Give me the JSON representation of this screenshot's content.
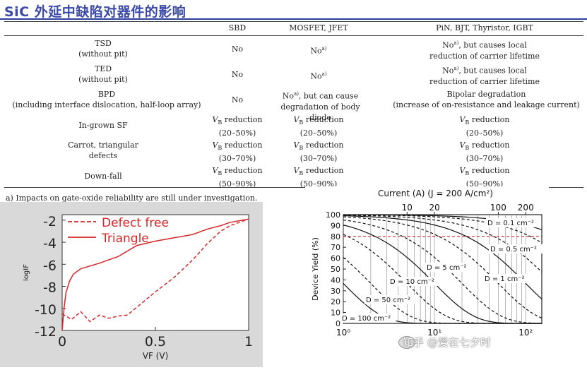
{
  "title": "SiC 外延中缺陷对器件的影响",
  "table": {
    "headers": [
      "",
      "SBD",
      "MOSFET, JFET",
      "PiN, BJT, Thyristor, IGBT"
    ],
    "rows": [
      {
        "defect": "TSD",
        "defect_sub": "(without pit)",
        "sbd": "No",
        "mosfet": "No",
        "mosfet_sup": "a)",
        "bip1": "No",
        "bip1_sup": "a)",
        "bip1_rest": ", but causes local",
        "bip2": "reduction of carrier lifetime"
      },
      {
        "defect": "TED",
        "defect_sub": "(without pit)",
        "sbd": "No",
        "mosfet": "No",
        "mosfet_sup": "a)",
        "bip1": "No",
        "bip1_sup": "a)",
        "bip1_rest": ", but causes local",
        "bip2": "reduction of carrier lifetime"
      },
      {
        "defect": "BPD",
        "defect_sub": "(including interface dislocation, half-loop array)",
        "sbd": "No",
        "mosfet": "No",
        "mosfet_sup": "a)",
        "mosfet_rest": ", but can cause",
        "mosfet2": "degradation of body diode",
        "bip1": "Bipolar degradation",
        "bip2": "(increase of on-resistance and leakage current)"
      },
      {
        "defect": "In-grown SF",
        "defect_sub": "",
        "sbd": "reduction",
        "sbd2": "(20–50%)",
        "mosfet": "reduction",
        "mosfet2": "(20–50%)",
        "bip1": "reduction",
        "bip2": "(20–50%)"
      },
      {
        "defect": "Carrot, triangular",
        "defect_sub": "defects",
        "sbd": "reduction",
        "sbd2": "(30–70%)",
        "mosfet": "reduction",
        "mosfet2": "(30–70%)",
        "bip1": "reduction",
        "bip2": "(30–70%)"
      },
      {
        "defect": "Down-fall",
        "defect_sub": "",
        "sbd": "reduction",
        "sbd2": "(50–90%)",
        "mosfet": "reduction",
        "mosfet2": "(50–90%)",
        "bip1": "reduction",
        "bip2": "(50–90%)"
      }
    ],
    "vb_prefix": "V",
    "vb_sub": "B",
    "footnote": "a) Impacts on gate-oxide reliability are still under investigation."
  },
  "chart_data": [
    {
      "type": "line",
      "series": [
        {
          "name": "Defect free",
          "style": "dashed",
          "color": "#d62728",
          "x": [
            0.0,
            0.05,
            0.1,
            0.15,
            0.2,
            0.25,
            0.3,
            0.35,
            0.5,
            0.6,
            0.7,
            0.78,
            0.85,
            0.9,
            1.0
          ],
          "y": [
            -10.5,
            -11.0,
            -10.3,
            -11.2,
            -10.6,
            -10.9,
            -10.7,
            -10.6,
            -8.5,
            -7.2,
            -5.6,
            -4.1,
            -3.0,
            -2.5,
            -1.9
          ]
        },
        {
          "name": "Triangle",
          "style": "solid",
          "color": "#d62728",
          "x": [
            0.0,
            0.01,
            0.02,
            0.04,
            0.06,
            0.1,
            0.2,
            0.3,
            0.35,
            0.4,
            0.5,
            0.6,
            0.7,
            0.78,
            0.85,
            0.9,
            1.0
          ],
          "y": [
            -12.0,
            -10.0,
            -8.6,
            -7.5,
            -6.9,
            -6.4,
            -5.9,
            -5.3,
            -4.8,
            -4.3,
            -3.9,
            -3.6,
            -3.3,
            -2.8,
            -2.5,
            -2.2,
            -1.9
          ]
        }
      ],
      "xlabel": "VF (V)",
      "ylabel": "logIF",
      "xlim": [
        0,
        1
      ],
      "ylim": [
        -12,
        -1.5
      ],
      "x_ticks": [
        "0",
        "0.5",
        "1"
      ],
      "y_ticks": [
        "-2",
        "-4",
        "-6",
        "-8",
        "-10",
        "-12"
      ],
      "legend": "top-left"
    },
    {
      "type": "line",
      "xscale": "log",
      "xlim": [
        1,
        150
      ],
      "ylim": [
        0,
        100
      ],
      "ylabel": "Device Yield (%)",
      "top_axis_label": "Current (A) (J = 200 A/cm²)",
      "top_ticks": [
        "10",
        "20",
        "100",
        "200"
      ],
      "x_ticks": [
        "10⁰",
        "10¹",
        "10²"
      ],
      "y_ticks": [
        "0",
        "10",
        "20",
        "30",
        "40",
        "50",
        "60",
        "70",
        "80",
        "90",
        "100"
      ],
      "reference_line_y": 80,
      "labels": [
        "D = 0.1 cm⁻²",
        "D = 0.5 cm⁻²",
        "D = 5 cm⁻²",
        "D = 10 cm⁻²",
        "D = 1 cm⁻²",
        "D = 50 cm⁻²",
        "D = 100 cm⁻²"
      ]
    }
  ],
  "watermark": "知乎 @爱在七夕时"
}
